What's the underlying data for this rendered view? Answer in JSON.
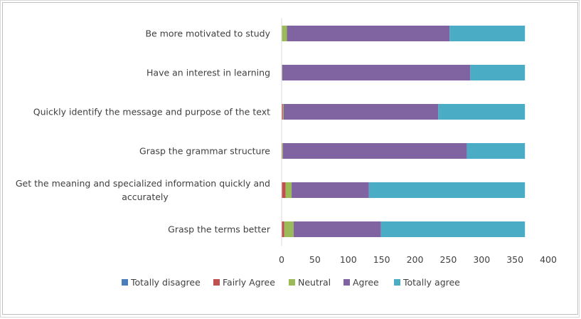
{
  "chart_data": {
    "type": "bar",
    "orientation": "horizontal",
    "stacked": true,
    "title": "",
    "xlabel": "",
    "ylabel": "",
    "xlim": [
      0,
      400
    ],
    "xticks": [
      "0",
      "50",
      "100",
      "150",
      "200",
      "250",
      "300",
      "350",
      "400"
    ],
    "grid": false,
    "legend_position": "bottom",
    "categories": [
      {
        "lines": [
          "Be more motivated to study"
        ]
      },
      {
        "lines": [
          "Have an interest in learning"
        ]
      },
      {
        "lines": [
          "Quickly identify the message and purpose of the text"
        ]
      },
      {
        "lines": [
          "Grasp the grammar structure"
        ]
      },
      {
        "lines": [
          "Get the meaning and specialized information quickly and",
          "accurately"
        ]
      },
      {
        "lines": [
          "Grasp the terms better"
        ]
      }
    ],
    "series": [
      {
        "name": "Totally disagree",
        "color": "#4a7ebb",
        "values": [
          0,
          0,
          0,
          0,
          0,
          0
        ]
      },
      {
        "name": "Fairly Agree",
        "color": "#c0504d",
        "values": [
          0,
          0,
          2,
          1,
          6,
          4
        ]
      },
      {
        "name": "Neutral",
        "color": "#9bbb59",
        "values": [
          8,
          1,
          1,
          1,
          9,
          14
        ]
      },
      {
        "name": "Agree",
        "color": "#8064a2",
        "values": [
          244,
          282,
          232,
          276,
          116,
          131
        ]
      },
      {
        "name": "Totally agree",
        "color": "#4bacc6",
        "values": [
          113,
          82,
          130,
          87,
          234,
          216
        ]
      }
    ]
  }
}
